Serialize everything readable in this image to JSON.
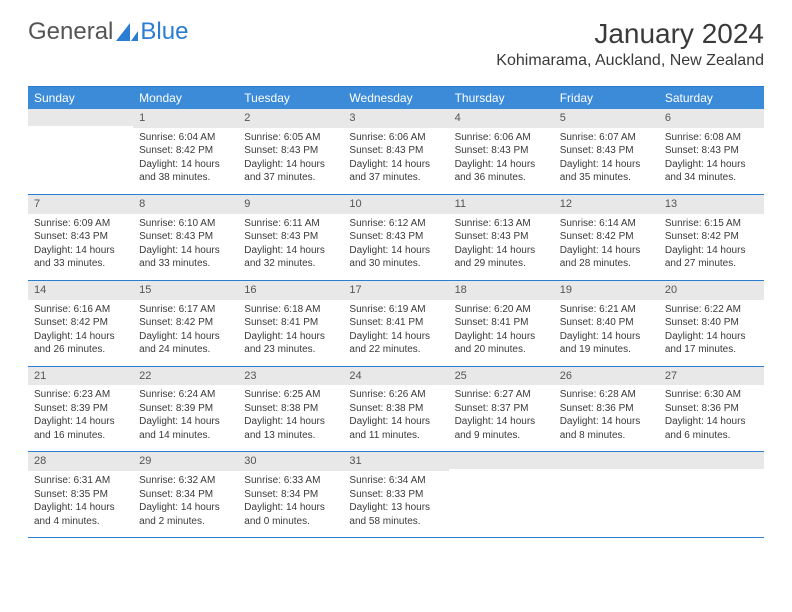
{
  "logo": {
    "text1": "General",
    "text2": "Blue"
  },
  "title": "January 2024",
  "location": "Kohimarama, Auckland, New Zealand",
  "colors": {
    "header_bg": "#3b8bd8",
    "header_text": "#ffffff",
    "border": "#2b7cd3",
    "daynum_bg": "#e8e8e8",
    "body_text": "#3a3a3a"
  },
  "day_names": [
    "Sunday",
    "Monday",
    "Tuesday",
    "Wednesday",
    "Thursday",
    "Friday",
    "Saturday"
  ],
  "weeks": [
    [
      null,
      {
        "n": "1",
        "sr": "6:04 AM",
        "ss": "8:42 PM",
        "dl": "14 hours and 38 minutes."
      },
      {
        "n": "2",
        "sr": "6:05 AM",
        "ss": "8:43 PM",
        "dl": "14 hours and 37 minutes."
      },
      {
        "n": "3",
        "sr": "6:06 AM",
        "ss": "8:43 PM",
        "dl": "14 hours and 37 minutes."
      },
      {
        "n": "4",
        "sr": "6:06 AM",
        "ss": "8:43 PM",
        "dl": "14 hours and 36 minutes."
      },
      {
        "n": "5",
        "sr": "6:07 AM",
        "ss": "8:43 PM",
        "dl": "14 hours and 35 minutes."
      },
      {
        "n": "6",
        "sr": "6:08 AM",
        "ss": "8:43 PM",
        "dl": "14 hours and 34 minutes."
      }
    ],
    [
      {
        "n": "7",
        "sr": "6:09 AM",
        "ss": "8:43 PM",
        "dl": "14 hours and 33 minutes."
      },
      {
        "n": "8",
        "sr": "6:10 AM",
        "ss": "8:43 PM",
        "dl": "14 hours and 33 minutes."
      },
      {
        "n": "9",
        "sr": "6:11 AM",
        "ss": "8:43 PM",
        "dl": "14 hours and 32 minutes."
      },
      {
        "n": "10",
        "sr": "6:12 AM",
        "ss": "8:43 PM",
        "dl": "14 hours and 30 minutes."
      },
      {
        "n": "11",
        "sr": "6:13 AM",
        "ss": "8:43 PM",
        "dl": "14 hours and 29 minutes."
      },
      {
        "n": "12",
        "sr": "6:14 AM",
        "ss": "8:42 PM",
        "dl": "14 hours and 28 minutes."
      },
      {
        "n": "13",
        "sr": "6:15 AM",
        "ss": "8:42 PM",
        "dl": "14 hours and 27 minutes."
      }
    ],
    [
      {
        "n": "14",
        "sr": "6:16 AM",
        "ss": "8:42 PM",
        "dl": "14 hours and 26 minutes."
      },
      {
        "n": "15",
        "sr": "6:17 AM",
        "ss": "8:42 PM",
        "dl": "14 hours and 24 minutes."
      },
      {
        "n": "16",
        "sr": "6:18 AM",
        "ss": "8:41 PM",
        "dl": "14 hours and 23 minutes."
      },
      {
        "n": "17",
        "sr": "6:19 AM",
        "ss": "8:41 PM",
        "dl": "14 hours and 22 minutes."
      },
      {
        "n": "18",
        "sr": "6:20 AM",
        "ss": "8:41 PM",
        "dl": "14 hours and 20 minutes."
      },
      {
        "n": "19",
        "sr": "6:21 AM",
        "ss": "8:40 PM",
        "dl": "14 hours and 19 minutes."
      },
      {
        "n": "20",
        "sr": "6:22 AM",
        "ss": "8:40 PM",
        "dl": "14 hours and 17 minutes."
      }
    ],
    [
      {
        "n": "21",
        "sr": "6:23 AM",
        "ss": "8:39 PM",
        "dl": "14 hours and 16 minutes."
      },
      {
        "n": "22",
        "sr": "6:24 AM",
        "ss": "8:39 PM",
        "dl": "14 hours and 14 minutes."
      },
      {
        "n": "23",
        "sr": "6:25 AM",
        "ss": "8:38 PM",
        "dl": "14 hours and 13 minutes."
      },
      {
        "n": "24",
        "sr": "6:26 AM",
        "ss": "8:38 PM",
        "dl": "14 hours and 11 minutes."
      },
      {
        "n": "25",
        "sr": "6:27 AM",
        "ss": "8:37 PM",
        "dl": "14 hours and 9 minutes."
      },
      {
        "n": "26",
        "sr": "6:28 AM",
        "ss": "8:36 PM",
        "dl": "14 hours and 8 minutes."
      },
      {
        "n": "27",
        "sr": "6:30 AM",
        "ss": "8:36 PM",
        "dl": "14 hours and 6 minutes."
      }
    ],
    [
      {
        "n": "28",
        "sr": "6:31 AM",
        "ss": "8:35 PM",
        "dl": "14 hours and 4 minutes."
      },
      {
        "n": "29",
        "sr": "6:32 AM",
        "ss": "8:34 PM",
        "dl": "14 hours and 2 minutes."
      },
      {
        "n": "30",
        "sr": "6:33 AM",
        "ss": "8:34 PM",
        "dl": "14 hours and 0 minutes."
      },
      {
        "n": "31",
        "sr": "6:34 AM",
        "ss": "8:33 PM",
        "dl": "13 hours and 58 minutes."
      },
      null,
      null,
      null
    ]
  ],
  "labels": {
    "sunrise": "Sunrise:",
    "sunset": "Sunset:",
    "daylight": "Daylight:"
  }
}
